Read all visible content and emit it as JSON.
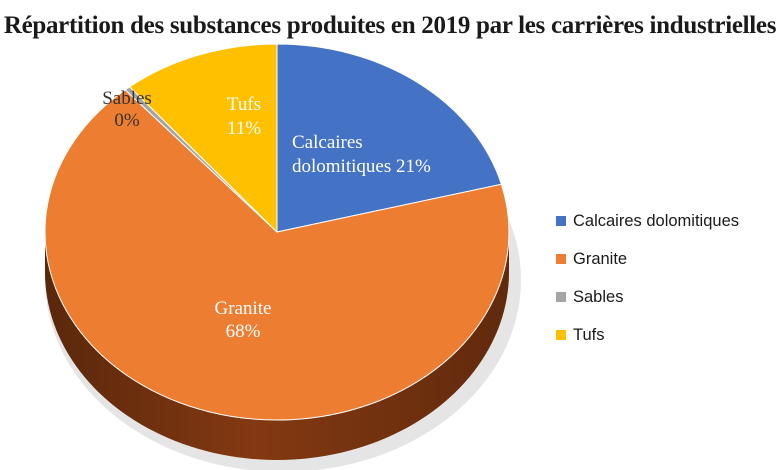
{
  "chart_data": {
    "type": "pie",
    "title": "Répartition des substances produites en 2019 par les carrières industrielles",
    "slices": [
      {
        "name": "Calcaires dolomitiques",
        "value": 21,
        "color": "#4472C4",
        "label_line1": "Calcaires",
        "label_line2": "dolomitiques 21%",
        "side_color": "#2f5597"
      },
      {
        "name": "Granite",
        "value": 68,
        "color": "#ED7D31",
        "label_line1": "Granite",
        "label_line2": "68%",
        "side_color": "#8a3c12"
      },
      {
        "name": "Sables",
        "value": 0.4,
        "color": "#A5A5A5",
        "label_line1": "Sables",
        "label_line2": "0%",
        "side_color": "#6e6e6e"
      },
      {
        "name": "Tufs",
        "value": 11,
        "color": "#FFC000",
        "label_line1": "Tufs",
        "label_line2": "11%",
        "side_color": "#a37a00"
      }
    ],
    "legend_position": "right"
  }
}
